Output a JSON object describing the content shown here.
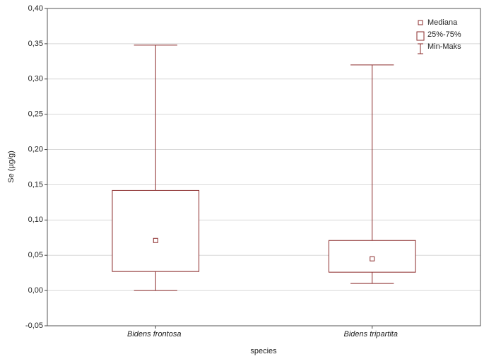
{
  "chart_data": {
    "type": "box",
    "x_label": "species",
    "y_label": "Se (µg/g)",
    "categories": [
      "Bidens frontosa",
      "Bidens tripartita"
    ],
    "boxes": [
      {
        "min": 0.0,
        "q1": 0.027,
        "median": 0.071,
        "q3": 0.142,
        "max": 0.348
      },
      {
        "min": 0.01,
        "q1": 0.026,
        "median": 0.045,
        "q3": 0.071,
        "max": 0.32
      }
    ],
    "color": "#8b2b2b",
    "ylim": [
      -0.05,
      0.4
    ],
    "yticks": [
      {
        "value": -0.05,
        "label": "-0,05"
      },
      {
        "value": 0,
        "label": "0,00"
      },
      {
        "value": 0.05,
        "label": "0,05"
      },
      {
        "value": 0.1,
        "label": "0,10"
      },
      {
        "value": 0.15,
        "label": "0,15"
      },
      {
        "value": 0.2,
        "label": "0,20"
      },
      {
        "value": 0.25,
        "label": "0,25"
      },
      {
        "value": 0.3,
        "label": "0,30"
      },
      {
        "value": 0.35,
        "label": "0,35"
      },
      {
        "value": 0.4,
        "label": "0,40"
      }
    ],
    "grid": true,
    "legend": {
      "position": "top-right",
      "median": "Mediana",
      "box": "25%-75%",
      "whisker": "Min-Maks"
    }
  }
}
